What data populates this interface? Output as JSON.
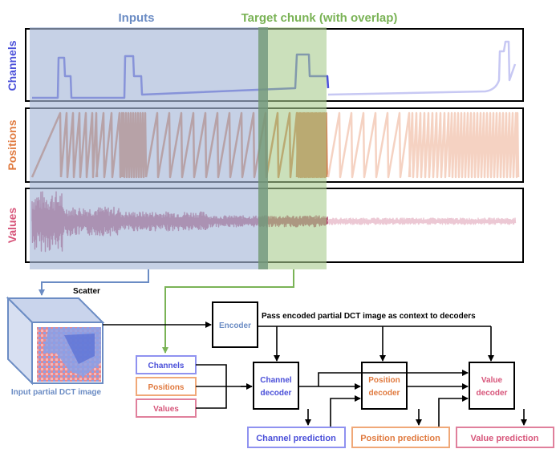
{
  "header": {
    "inputs": "Inputs",
    "target": "Target chunk (with overlap)"
  },
  "tracks": {
    "channels": "Channels",
    "positions": "Positions",
    "values": "Values"
  },
  "flow": {
    "scatter": "Scatter",
    "cube_caption": "Input partial DCT image",
    "context_note": "Pass encoded partial DCT image as context to decoders"
  },
  "inputs_boxes": [
    "Channels",
    "Positions",
    "Values"
  ],
  "blocks": {
    "encoder": "Encoder",
    "channel_decoder": [
      "Channel",
      "decoder"
    ],
    "position_decoder": [
      "Position",
      "decoder"
    ],
    "value_decoder": [
      "Value",
      "decoder"
    ]
  },
  "outputs": {
    "channel_prediction": "Channel prediction",
    "position_prediction": "Position prediction",
    "value_prediction": "Value prediction"
  },
  "colors": {
    "inputs_band": "#a8b8d9",
    "target_band": "#a9cc8e",
    "overlap_band": "#6f9a7a",
    "channels": "#4a4fd9",
    "channels_faded": "#c7c8f3",
    "positions": "#d4784a",
    "positions_faded": "#f5d2c2",
    "values": "#b24a6e",
    "values_faded": "#ecc8d4",
    "inputs_label": "#6b8cc4",
    "target_label": "#7ab356",
    "encoder_text": "#6b8cc4"
  }
}
